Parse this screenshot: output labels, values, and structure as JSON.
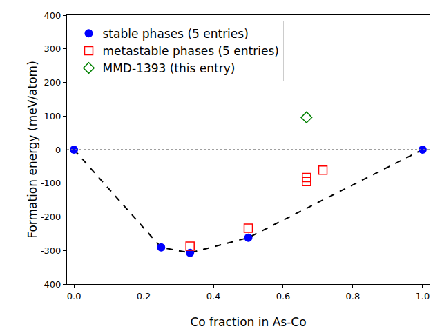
{
  "chart_data": {
    "type": "scatter",
    "x_label": "Co fraction in As-Co",
    "y_label": "Formation energy (meV/atom)",
    "xlim": [
      -0.02,
      1.02
    ],
    "xticks": [
      {
        "value": 0,
        "label": "0.0"
      },
      {
        "value": 0.2,
        "label": "0.2"
      },
      {
        "value": 0.4,
        "label": "0.4"
      },
      {
        "value": 0.6,
        "label": "0.6"
      },
      {
        "value": 0.8,
        "label": "0.8"
      },
      {
        "value": 1,
        "label": "1.0"
      }
    ],
    "ylim": [
      -400,
      400
    ],
    "yticks": [
      -400,
      -300,
      -200,
      -100,
      0,
      100,
      200,
      300,
      400
    ],
    "grid": false,
    "legend": "upper left",
    "hline": {
      "y": 0,
      "line_style": "dotted",
      "color": "#808080"
    },
    "series": [
      {
        "name": "stable phases (5 entries)",
        "color": "#0000ff",
        "marker": "circle",
        "line_style": "dashed",
        "x": [
          0,
          0.25,
          0.333,
          0.5,
          1
        ],
        "values": [
          0,
          -291,
          -307,
          -262,
          0
        ]
      },
      {
        "name": "metastable phases (5 entries)",
        "color": "#ff0000",
        "marker": "square-open",
        "x": [
          0.333,
          0.5,
          0.667,
          0.667,
          0.714
        ],
        "values": [
          -287,
          -234,
          -83,
          -95,
          -61
        ]
      },
      {
        "name": "MMD-1393 (this entry)",
        "color": "#008000",
        "marker": "diamond-open",
        "x": [
          0.667
        ],
        "values": [
          96
        ]
      }
    ]
  }
}
